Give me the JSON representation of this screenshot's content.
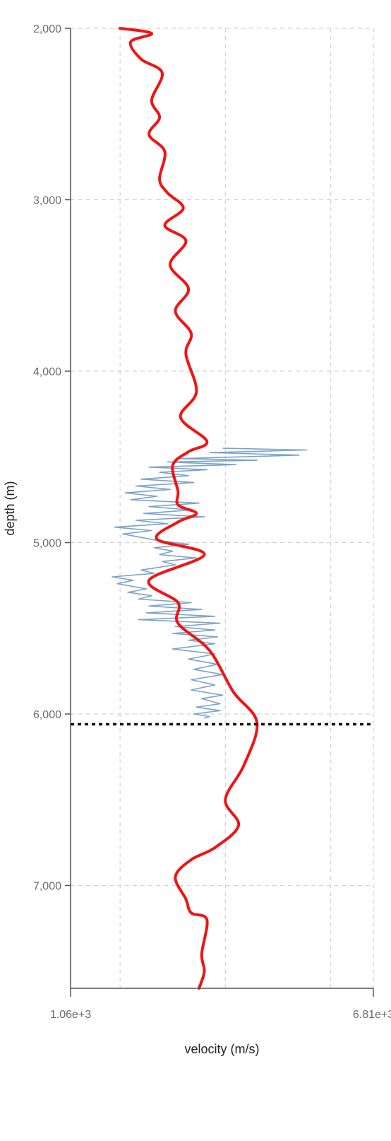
{
  "chart_data": {
    "type": "line",
    "xlabel": "velocity (m/s)",
    "ylabel": "depth (m)",
    "xlim": [
      1060,
      6810
    ],
    "ylim": [
      2000,
      7600
    ],
    "y_inverted": true,
    "grid": true,
    "x_tick_values": [
      1060,
      2000,
      4000,
      6000,
      6810
    ],
    "x_tick_labels": [
      "1.06e+3",
      "",
      "",
      "",
      "6.81e+3"
    ],
    "y_tick_values": [
      2000,
      3000,
      4000,
      5000,
      6000,
      7000
    ],
    "y_tick_labels": [
      "2,000",
      "3,000",
      "4,000",
      "5,000",
      "6,000",
      "7,000"
    ],
    "marker_depth": 6060,
    "series": [
      {
        "style": "trace",
        "color": "#7aa3cb",
        "points": [
          [
            3950,
            4450
          ],
          [
            5550,
            4460
          ],
          [
            3700,
            4475
          ],
          [
            5400,
            4490
          ],
          [
            3150,
            4510
          ],
          [
            4600,
            4520
          ],
          [
            2900,
            4530
          ],
          [
            4200,
            4545
          ],
          [
            2550,
            4560
          ],
          [
            3650,
            4575
          ],
          [
            2750,
            4590
          ],
          [
            3300,
            4610
          ],
          [
            2400,
            4630
          ],
          [
            3400,
            4650
          ],
          [
            2300,
            4670
          ],
          [
            2950,
            4690
          ],
          [
            2100,
            4710
          ],
          [
            2700,
            4730
          ],
          [
            2200,
            4750
          ],
          [
            3500,
            4770
          ],
          [
            2550,
            4790
          ],
          [
            3350,
            4810
          ],
          [
            2450,
            4830
          ],
          [
            3600,
            4850
          ],
          [
            2300,
            4870
          ],
          [
            2900,
            4890
          ],
          [
            1900,
            4910
          ],
          [
            2600,
            4930
          ],
          [
            2050,
            4950
          ],
          [
            2400,
            4970
          ],
          [
            2750,
            4990
          ],
          [
            3300,
            5010
          ],
          [
            2650,
            5030
          ],
          [
            3000,
            5050
          ],
          [
            2750,
            5070
          ],
          [
            3450,
            5090
          ],
          [
            2800,
            5110
          ],
          [
            3050,
            5130
          ],
          [
            2400,
            5160
          ],
          [
            2650,
            5180
          ],
          [
            1850,
            5200
          ],
          [
            2250,
            5220
          ],
          [
            1950,
            5240
          ],
          [
            2500,
            5270
          ],
          [
            2150,
            5290
          ],
          [
            2600,
            5310
          ],
          [
            2350,
            5330
          ],
          [
            3350,
            5350
          ],
          [
            2550,
            5370
          ],
          [
            3550,
            5390
          ],
          [
            2500,
            5410
          ],
          [
            3800,
            5430
          ],
          [
            2350,
            5450
          ],
          [
            3900,
            5470
          ],
          [
            3050,
            5490
          ],
          [
            3800,
            5510
          ],
          [
            3000,
            5530
          ],
          [
            3850,
            5550
          ],
          [
            3300,
            5570
          ],
          [
            3800,
            5590
          ],
          [
            3000,
            5620
          ],
          [
            3800,
            5650
          ],
          [
            3300,
            5680
          ],
          [
            3850,
            5710
          ],
          [
            3400,
            5740
          ],
          [
            3950,
            5770
          ],
          [
            3350,
            5800
          ],
          [
            3800,
            5830
          ],
          [
            3350,
            5860
          ],
          [
            3950,
            5890
          ],
          [
            3550,
            5910
          ],
          [
            3900,
            5940
          ],
          [
            3450,
            5960
          ],
          [
            3900,
            5980
          ],
          [
            3400,
            6000
          ],
          [
            3700,
            6015
          ],
          [
            3600,
            6025
          ]
        ]
      },
      {
        "style": "smooth",
        "color": "#f01414",
        "points": [
          [
            2000,
            2000
          ],
          [
            2600,
            2030
          ],
          [
            2200,
            2080
          ],
          [
            2400,
            2180
          ],
          [
            2800,
            2260
          ],
          [
            2600,
            2420
          ],
          [
            2750,
            2520
          ],
          [
            2550,
            2620
          ],
          [
            2850,
            2720
          ],
          [
            2750,
            2880
          ],
          [
            2900,
            2960
          ],
          [
            3200,
            3050
          ],
          [
            2850,
            3150
          ],
          [
            3250,
            3240
          ],
          [
            2950,
            3380
          ],
          [
            3300,
            3520
          ],
          [
            3050,
            3650
          ],
          [
            3350,
            3780
          ],
          [
            3250,
            3900
          ],
          [
            3450,
            4120
          ],
          [
            3150,
            4270
          ],
          [
            3650,
            4410
          ],
          [
            3300,
            4470
          ],
          [
            3000,
            4550
          ],
          [
            3100,
            4700
          ],
          [
            3100,
            4780
          ],
          [
            3450,
            4830
          ],
          [
            3100,
            4880
          ],
          [
            2700,
            4980
          ],
          [
            3600,
            5070
          ],
          [
            2550,
            5220
          ],
          [
            3100,
            5350
          ],
          [
            3100,
            5470
          ],
          [
            3700,
            5630
          ],
          [
            4150,
            5870
          ],
          [
            4600,
            6050
          ],
          [
            4350,
            6300
          ],
          [
            4000,
            6500
          ],
          [
            4250,
            6650
          ],
          [
            3800,
            6780
          ],
          [
            3350,
            6850
          ],
          [
            3050,
            6950
          ],
          [
            3250,
            7080
          ],
          [
            3350,
            7160
          ],
          [
            3650,
            7200
          ],
          [
            3550,
            7400
          ],
          [
            3600,
            7500
          ],
          [
            3500,
            7600
          ]
        ]
      }
    ]
  }
}
